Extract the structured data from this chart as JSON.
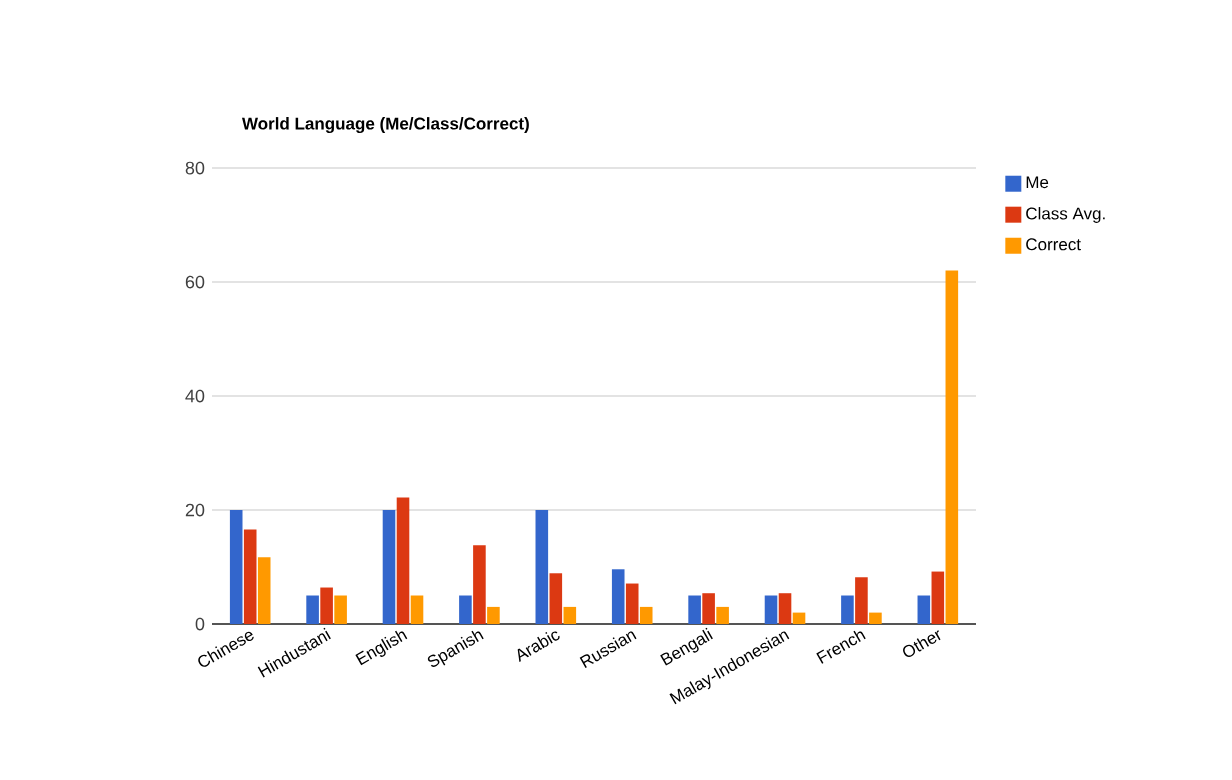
{
  "chart_data": {
    "type": "bar",
    "title": "World Language (Me/Class/Correct)",
    "categories": [
      "Chinese",
      "Hindustani",
      "English",
      "Spanish",
      "Arabic",
      "Russian",
      "Bengali",
      "Malay-Indonesian",
      "French",
      "Other"
    ],
    "series": [
      {
        "name": "Me",
        "color": "#3366cc",
        "values": [
          20,
          5,
          20,
          5,
          20,
          9.6,
          5,
          5,
          5,
          5
        ]
      },
      {
        "name": "Class Avg.",
        "color": "#dc3912",
        "values": [
          16.6,
          6.4,
          22.2,
          13.8,
          8.9,
          7.1,
          5.4,
          5.4,
          8.2,
          9.2
        ]
      },
      {
        "name": "Correct",
        "color": "#ff9900",
        "values": [
          11.7,
          5,
          5,
          3,
          3,
          3,
          3,
          2,
          2,
          62
        ]
      }
    ],
    "ylim": [
      0,
      80
    ],
    "yticks": [
      0,
      20,
      40,
      60,
      80
    ],
    "grid": "y",
    "legend": "top right"
  }
}
